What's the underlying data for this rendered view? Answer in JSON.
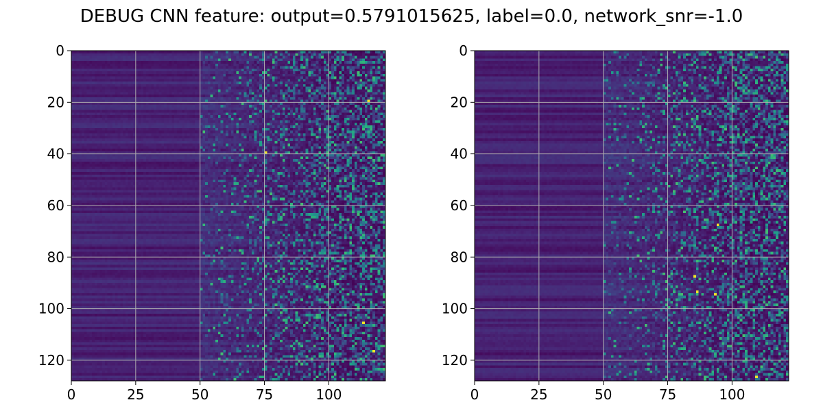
{
  "chart_data": {
    "type": "heatmap",
    "title": "DEBUG CNN feature: output=0.5791015625, label=0.0, network_snr=-1.0",
    "colormap": "viridis",
    "grid": true,
    "panels": [
      {
        "name": "",
        "rows": 128,
        "cols": 122,
        "xlim": [
          0,
          122
        ],
        "ylim": [
          128,
          0
        ],
        "xticks": [
          0,
          25,
          50,
          75,
          100
        ],
        "yticks": [
          0,
          20,
          40,
          60,
          80,
          100,
          120
        ],
        "structure": "low uniform values for columns 0-50, increasingly sparse high values for columns 50-122",
        "hot_cells": [
          [
            19,
            115
          ],
          [
            39,
            75
          ],
          [
            105,
            113
          ],
          [
            116,
            117
          ]
        ]
      },
      {
        "name": "",
        "rows": 128,
        "cols": 122,
        "xlim": [
          0,
          122
        ],
        "ylim": [
          128,
          0
        ],
        "xticks": [
          0,
          25,
          50,
          75,
          100
        ],
        "yticks": [
          0,
          20,
          40,
          60,
          80,
          100,
          120
        ],
        "structure": "low uniform values for columns 0-50, increasingly sparse high values for columns 50-122",
        "hot_cells": [
          [
            87,
            85
          ],
          [
            93,
            86
          ],
          [
            67,
            94
          ],
          [
            94,
            93
          ],
          [
            126,
            109
          ]
        ]
      }
    ]
  }
}
